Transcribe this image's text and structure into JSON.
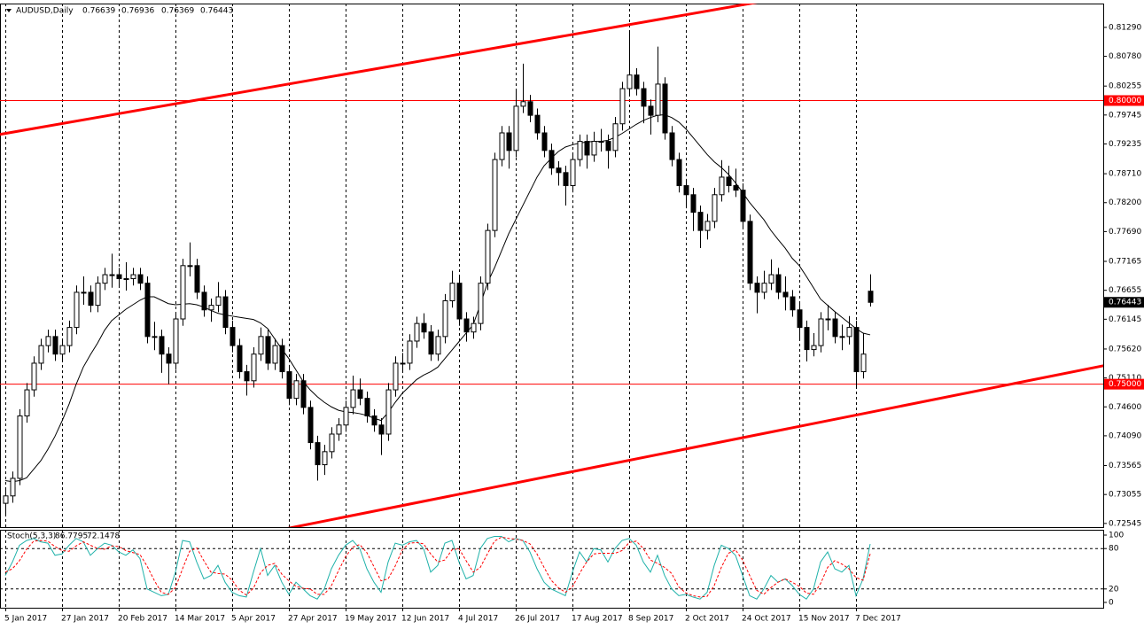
{
  "chart_data": [
    {
      "type": "candlestick",
      "title": "AUDUSD,Daily",
      "categories": [
        "5 Jan 2017",
        null,
        null,
        null,
        null,
        null,
        null,
        null,
        "27 Jan 2017",
        null,
        null,
        null,
        null,
        null,
        null,
        null,
        "20 Feb 2017",
        null,
        null,
        null,
        null,
        null,
        null,
        null,
        "14 Mar 2017",
        null,
        null,
        null,
        null,
        null,
        null,
        null,
        "5 Apr 2017",
        null,
        null,
        null,
        null,
        null,
        null,
        null,
        "27 Apr 2017",
        null,
        null,
        null,
        null,
        null,
        null,
        null,
        "19 May 2017",
        null,
        null,
        null,
        null,
        null,
        null,
        null,
        "12 Jun 2017",
        null,
        null,
        null,
        null,
        null,
        null,
        null,
        "4 Jul 2017",
        null,
        null,
        null,
        null,
        null,
        null,
        null,
        "26 Jul 2017",
        null,
        null,
        null,
        null,
        null,
        null,
        null,
        "17 Aug 2017",
        null,
        null,
        null,
        null,
        null,
        null,
        null,
        "8 Sep 2017",
        null,
        null,
        null,
        null,
        null,
        null,
        null,
        "2 Oct 2017",
        null,
        null,
        null,
        null,
        null,
        null,
        null,
        "24 Oct 2017",
        null,
        null,
        null,
        null,
        null,
        null,
        null,
        "15 Nov 2017",
        null,
        null,
        null,
        null,
        null,
        null,
        null,
        "7 Dec 2017",
        null,
        null
      ],
      "open": [
        0.729,
        0.7303,
        0.7334,
        0.7444,
        0.749,
        0.7537,
        0.7568,
        0.7584,
        0.7553,
        0.7568,
        0.76,
        0.7662,
        0.7662,
        0.7639,
        0.7678,
        0.7693,
        0.7693,
        0.7686,
        0.7686,
        0.7693,
        0.7678,
        0.7584,
        0.7584,
        0.7553,
        0.7537,
        0.7615,
        0.7709,
        0.7709,
        0.7662,
        0.7631,
        0.7639,
        0.7654,
        0.76,
        0.7568,
        0.7522,
        0.7506,
        0.7553,
        0.7584,
        0.7537,
        0.7568,
        0.7522,
        0.7475,
        0.7506,
        0.7459,
        0.7397,
        0.7358,
        0.7381,
        0.7412,
        0.7428,
        0.7459,
        0.749,
        0.7475,
        0.7444,
        0.7428,
        0.7412,
        0.749,
        0.7537,
        0.7537,
        0.7576,
        0.7607,
        0.7592,
        0.7553,
        0.7584,
        0.7647,
        0.7678,
        0.7615,
        0.7592,
        0.7607,
        0.7678,
        0.7771,
        0.7896,
        0.7943,
        0.7912,
        0.799,
        0.7998,
        0.7974,
        0.7943,
        0.7912,
        0.7881,
        0.7873,
        0.785,
        0.7896,
        0.7928,
        0.7904,
        0.7928,
        0.7928,
        0.7912,
        0.7959,
        0.8021,
        0.8045,
        0.8021,
        0.799,
        0.7974,
        0.8029,
        0.7943,
        0.7896,
        0.785,
        0.7834,
        0.7803,
        0.7771,
        0.7787,
        0.7834,
        0.7865,
        0.785,
        0.7842,
        0.7787,
        0.7678,
        0.7662,
        0.7678,
        0.7693,
        0.7662,
        0.7654,
        0.7631,
        0.76,
        0.7561,
        0.7568,
        0.7615,
        0.7615,
        0.7584,
        0.7584,
        0.76,
        0.7522,
        0.76639
      ],
      "high": [
        0.7315,
        0.7346,
        0.7456,
        0.7502,
        0.7549,
        0.758,
        0.7596,
        0.7596,
        0.758,
        0.7612,
        0.7674,
        0.769,
        0.7674,
        0.769,
        0.7705,
        0.773,
        0.7705,
        0.7715,
        0.7705,
        0.7705,
        0.769,
        0.761,
        0.7596,
        0.7565,
        0.7627,
        0.7721,
        0.775,
        0.7721,
        0.7674,
        0.7651,
        0.768,
        0.7666,
        0.7612,
        0.758,
        0.7534,
        0.7565,
        0.76,
        0.7596,
        0.758,
        0.758,
        0.7534,
        0.7518,
        0.7518,
        0.7471,
        0.7409,
        0.7393,
        0.7424,
        0.744,
        0.7471,
        0.7515,
        0.751,
        0.7487,
        0.7456,
        0.744,
        0.7502,
        0.7549,
        0.7555,
        0.7588,
        0.7619,
        0.7625,
        0.7604,
        0.7596,
        0.7659,
        0.77,
        0.769,
        0.7627,
        0.7619,
        0.769,
        0.7783,
        0.7908,
        0.7955,
        0.7955,
        0.802,
        0.8065,
        0.801,
        0.7986,
        0.7955,
        0.7924,
        0.7893,
        0.7885,
        0.7908,
        0.794,
        0.794,
        0.7945,
        0.795,
        0.794,
        0.7971,
        0.8033,
        0.812,
        0.8057,
        0.8033,
        0.8002,
        0.8095,
        0.8041,
        0.7955,
        0.7908,
        0.7862,
        0.7846,
        0.7815,
        0.78,
        0.7846,
        0.7895,
        0.7885,
        0.788,
        0.7854,
        0.7799,
        0.769,
        0.77,
        0.772,
        0.7705,
        0.769,
        0.7666,
        0.7643,
        0.7612,
        0.759,
        0.7627,
        0.764,
        0.7627,
        0.7605,
        0.762,
        0.7612,
        0.759,
        0.76936
      ],
      "low": [
        0.727,
        0.7291,
        0.7322,
        0.7432,
        0.7478,
        0.7525,
        0.7556,
        0.7541,
        0.7541,
        0.7556,
        0.7588,
        0.764,
        0.7627,
        0.7627,
        0.7666,
        0.767,
        0.7674,
        0.7665,
        0.7674,
        0.7666,
        0.7572,
        0.756,
        0.752,
        0.75,
        0.7525,
        0.7603,
        0.769,
        0.765,
        0.7619,
        0.761,
        0.7627,
        0.7588,
        0.7556,
        0.751,
        0.748,
        0.7494,
        0.7541,
        0.7525,
        0.7525,
        0.751,
        0.7463,
        0.7463,
        0.7447,
        0.7385,
        0.733,
        0.734,
        0.7369,
        0.74,
        0.7416,
        0.7447,
        0.7463,
        0.7432,
        0.7416,
        0.7375,
        0.74,
        0.7478,
        0.752,
        0.7525,
        0.7564,
        0.758,
        0.7541,
        0.7541,
        0.7572,
        0.7635,
        0.7603,
        0.7575,
        0.758,
        0.7595,
        0.7666,
        0.7759,
        0.7884,
        0.788,
        0.79,
        0.7978,
        0.7962,
        0.7931,
        0.79,
        0.7869,
        0.785,
        0.7815,
        0.7838,
        0.7884,
        0.788,
        0.7892,
        0.791,
        0.788,
        0.79,
        0.7947,
        0.8009,
        0.8009,
        0.796,
        0.794,
        0.7962,
        0.7931,
        0.7884,
        0.7838,
        0.781,
        0.777,
        0.774,
        0.7755,
        0.7775,
        0.7822,
        0.7838,
        0.783,
        0.7775,
        0.7666,
        0.7625,
        0.765,
        0.7666,
        0.765,
        0.763,
        0.7619,
        0.758,
        0.754,
        0.7549,
        0.7556,
        0.7595,
        0.7572,
        0.756,
        0.757,
        0.7495,
        0.751,
        0.76369
      ],
      "close": [
        0.7303,
        0.7334,
        0.7444,
        0.749,
        0.7537,
        0.7568,
        0.7584,
        0.7553,
        0.7568,
        0.76,
        0.7662,
        0.7662,
        0.7639,
        0.7678,
        0.7693,
        0.7693,
        0.7686,
        0.7686,
        0.7693,
        0.7678,
        0.7584,
        0.7584,
        0.7553,
        0.7537,
        0.7615,
        0.7709,
        0.7709,
        0.7662,
        0.7631,
        0.7639,
        0.7654,
        0.76,
        0.7568,
        0.7522,
        0.7506,
        0.7553,
        0.7584,
        0.7537,
        0.7568,
        0.7522,
        0.7475,
        0.7506,
        0.7459,
        0.7397,
        0.7358,
        0.7381,
        0.7412,
        0.7428,
        0.7459,
        0.749,
        0.7475,
        0.7444,
        0.7428,
        0.7412,
        0.749,
        0.7537,
        0.7537,
        0.7576,
        0.7607,
        0.7592,
        0.7553,
        0.7584,
        0.7647,
        0.7678,
        0.7615,
        0.7592,
        0.7607,
        0.7678,
        0.7771,
        0.7896,
        0.7943,
        0.7912,
        0.799,
        0.7998,
        0.7974,
        0.7943,
        0.7912,
        0.7881,
        0.7873,
        0.785,
        0.7896,
        0.7928,
        0.7904,
        0.7928,
        0.7928,
        0.7912,
        0.7959,
        0.8021,
        0.8045,
        0.8021,
        0.799,
        0.7974,
        0.8029,
        0.7943,
        0.7896,
        0.785,
        0.7834,
        0.7803,
        0.7771,
        0.7787,
        0.7834,
        0.7865,
        0.785,
        0.7842,
        0.7787,
        0.7678,
        0.7662,
        0.7678,
        0.7693,
        0.7662,
        0.7654,
        0.7631,
        0.76,
        0.7561,
        0.7568,
        0.7615,
        0.7615,
        0.7584,
        0.7584,
        0.76,
        0.7522,
        0.7553,
        0.76443
      ],
      "ma": {
        "color": "#000000",
        "values": [
          0.733,
          0.7328,
          0.733,
          0.7335,
          0.735,
          0.7365,
          0.7385,
          0.7408,
          0.7435,
          0.7465,
          0.75,
          0.753,
          0.7552,
          0.7572,
          0.7595,
          0.7612,
          0.7622,
          0.7632,
          0.764,
          0.7648,
          0.7654,
          0.7654,
          0.7648,
          0.7642,
          0.764,
          0.7641,
          0.7642,
          0.764,
          0.7636,
          0.763,
          0.7625,
          0.7622,
          0.762,
          0.7618,
          0.7616,
          0.7614,
          0.7608,
          0.7598,
          0.758,
          0.7562,
          0.7545,
          0.7525,
          0.7505,
          0.749,
          0.7478,
          0.7468,
          0.746,
          0.7454,
          0.7451,
          0.745,
          0.7448,
          0.7445,
          0.744,
          0.7436,
          0.745,
          0.7468,
          0.7484,
          0.7496,
          0.7508,
          0.7516,
          0.7522,
          0.753,
          0.7545,
          0.756,
          0.7575,
          0.759,
          0.7605,
          0.764,
          0.7678,
          0.7705,
          0.7735,
          0.7765,
          0.779,
          0.7815,
          0.784,
          0.7865,
          0.7885,
          0.7898,
          0.791,
          0.7918,
          0.7922,
          0.7925,
          0.7927,
          0.7928,
          0.7928,
          0.793,
          0.7935,
          0.7942,
          0.795,
          0.7958,
          0.7965,
          0.797,
          0.7974,
          0.7975,
          0.797,
          0.7962,
          0.795,
          0.7935,
          0.792,
          0.7905,
          0.7892,
          0.7882,
          0.787,
          0.7855,
          0.7838,
          0.782,
          0.7805,
          0.779,
          0.7771,
          0.7755,
          0.774,
          0.7722,
          0.7709,
          0.769,
          0.767,
          0.765,
          0.7639,
          0.7628,
          0.7618,
          0.7608,
          0.7598,
          0.759,
          0.7587
        ]
      },
      "levels": [
        {
          "value": 0.8,
          "label": "0.80000",
          "color": "#ff0000"
        },
        {
          "value": 0.75,
          "label": "0.75000",
          "color": "#ff0000"
        }
      ],
      "trendlines": [
        {
          "points": [
            [
              0,
              0.7942
            ],
            [
              100,
              0.816
            ]
          ],
          "color": "#ff0000"
        },
        {
          "points": [
            [
              50,
              0.72711
            ],
            [
              150,
              0.75203
            ]
          ],
          "color": "#ff0000"
        }
      ],
      "ylim": [
        0.7248,
        0.8171
      ],
      "yticks": [
        {
          "value": 0.8129,
          "label": "0.81290"
        },
        {
          "value": 0.8078,
          "label": "0.80780"
        },
        0.80255,
        0.79745,
        0.79235,
        {
          "value": 0.7871,
          "label": "0.78710"
        },
        {
          "value": 0.782,
          "label": "0.78200"
        },
        {
          "value": 0.7769,
          "label": "0.77690"
        },
        0.77165,
        0.76655,
        0.76145,
        {
          "value": 0.7562,
          "label": "0.75620"
        },
        {
          "value": 0.7511,
          "label": "0.75110"
        },
        {
          "value": 0.746,
          "label": "0.74600"
        },
        {
          "value": 0.7409,
          "label": "0.74090"
        },
        0.73565,
        0.73055,
        0.72545
      ],
      "grid": true
    },
    {
      "type": "line",
      "title": "Stoch(5,3,3)",
      "series": [
        {
          "color": "#20b2aa",
          "style": "solid",
          "values": [
            40,
            60,
            85,
            92,
            95,
            90,
            88,
            70,
            72,
            85,
            95,
            90,
            70,
            80,
            88,
            85,
            75,
            70,
            78,
            65,
            20,
            15,
            10,
            12,
            45,
            92,
            90,
            60,
            35,
            40,
            55,
            30,
            15,
            10,
            8,
            45,
            80,
            40,
            55,
            30,
            12,
            30,
            20,
            10,
            5,
            20,
            50,
            70,
            85,
            92,
            80,
            50,
            30,
            15,
            60,
            88,
            85,
            90,
            92,
            80,
            45,
            55,
            88,
            92,
            60,
            35,
            40,
            80,
            95,
            98,
            98,
            90,
            95,
            92,
            75,
            50,
            30,
            20,
            15,
            10,
            45,
            75,
            60,
            80,
            78,
            60,
            80,
            92,
            95,
            85,
            60,
            45,
            70,
            40,
            20,
            10,
            12,
            8,
            5,
            15,
            55,
            85,
            80,
            70,
            40,
            10,
            5,
            20,
            40,
            30,
            35,
            25,
            12,
            5,
            20,
            60,
            75,
            50,
            45,
            55,
            10,
            35,
            86.7795
          ]
        },
        {
          "color": "#ff0000",
          "style": "dashed",
          "values": [
            45,
            50,
            62,
            79,
            91,
            92,
            91,
            83,
            77,
            76,
            84,
            90,
            85,
            80,
            79,
            84,
            83,
            77,
            74,
            71,
            54,
            33,
            15,
            12,
            22,
            50,
            76,
            81,
            62,
            45,
            43,
            42,
            33,
            18,
            11,
            21,
            44,
            55,
            58,
            42,
            32,
            24,
            21,
            20,
            12,
            12,
            25,
            47,
            68,
            82,
            86,
            74,
            53,
            32,
            35,
            54,
            78,
            88,
            89,
            87,
            72,
            60,
            63,
            78,
            80,
            62,
            45,
            52,
            72,
            91,
            97,
            95,
            94,
            92,
            87,
            72,
            52,
            33,
            22,
            15,
            23,
            43,
            60,
            72,
            73,
            73,
            73,
            77,
            89,
            91,
            80,
            63,
            58,
            52,
            43,
            23,
            14,
            10,
            8,
            9,
            25,
            52,
            73,
            78,
            63,
            40,
            18,
            12,
            22,
            30,
            35,
            30,
            24,
            14,
            12,
            28,
            52,
            62,
            57,
            50,
            37,
            33,
            72.1478
          ]
        }
      ],
      "levels": [
        20,
        80
      ],
      "ylim": [
        -7.9,
        107.9
      ],
      "yticks": [
        0,
        100
      ]
    }
  ]
}
